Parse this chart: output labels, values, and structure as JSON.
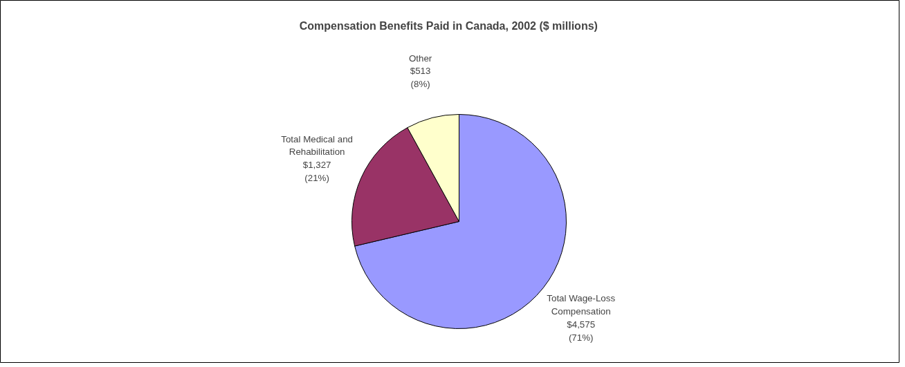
{
  "chart_data": {
    "type": "pie",
    "title": "Compensation Benefits Paid in Canada, 2002  ($ millions)",
    "categories": [
      "Total Wage-Loss\nCompensation",
      "Total Medical and\nRehabilitation",
      "Other"
    ],
    "values": [
      4575,
      1327,
      513
    ],
    "colors": [
      "#9999ff",
      "#993366",
      "#ffffcc"
    ],
    "value_labels": [
      "$4,575\n(71%)",
      "$1,327\n(21%)",
      "$513\n(8%)"
    ]
  }
}
